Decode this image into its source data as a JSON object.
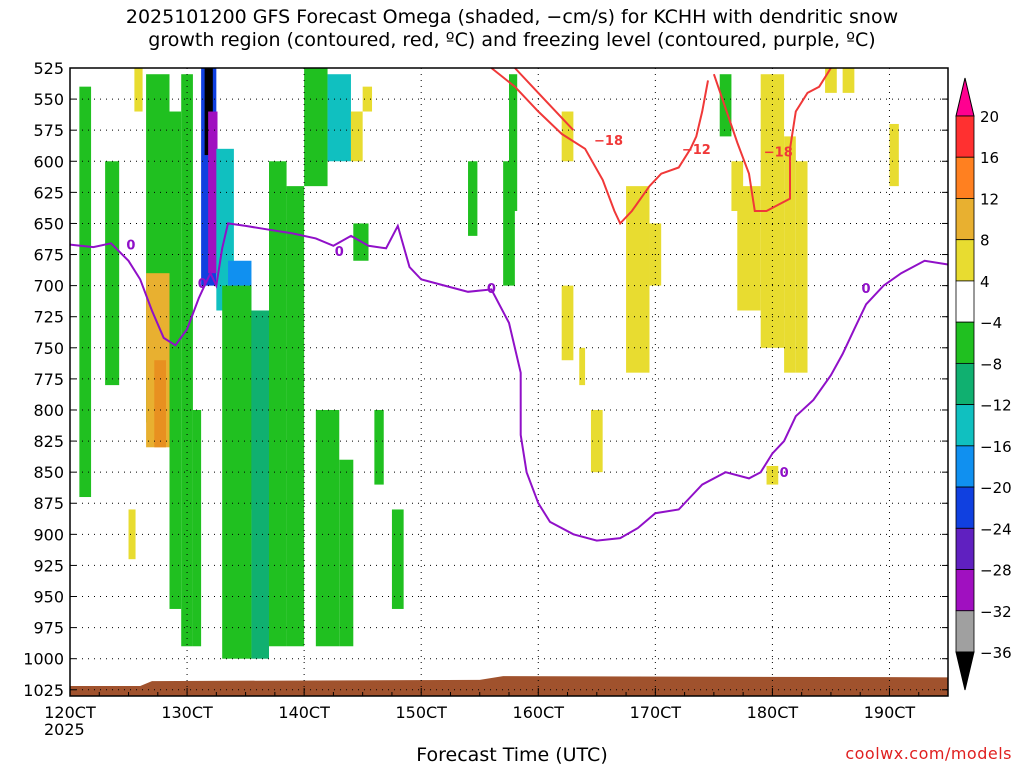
{
  "title_line1": "2025101200 GFS Forecast Omega (shaded, −cm/s) for KCHH with dendritic snow",
  "title_line2": "growth region (contoured, red, ºC) and freezing level (contoured, purple, ºC)",
  "credit": "coolwx.com/models",
  "chart_data": {
    "type": "heatmap",
    "title": "2025101200 GFS Forecast Omega (shaded, −cm/s) for KCHH with dendritic snow growth region (contoured, red, ºC) and freezing level (contoured, purple, ºC)",
    "xlabel": "Forecast Time (UTC)",
    "ylabel": "",
    "x_start_year": "2025",
    "x_ticks": [
      "120CT",
      "130CT",
      "140CT",
      "150CT",
      "160CT",
      "170CT",
      "180CT",
      "190CT"
    ],
    "x_range_days": [
      12,
      19.5
    ],
    "y_ticks": [
      525,
      550,
      575,
      600,
      625,
      650,
      675,
      700,
      725,
      750,
      775,
      800,
      825,
      850,
      875,
      900,
      925,
      950,
      975,
      1000,
      1025
    ],
    "y_range_hpa": [
      525,
      1030
    ],
    "y_inverted": true,
    "grid": true,
    "colorbar": {
      "labels": [
        "20",
        "16",
        "12",
        "8",
        "4",
        "−4",
        "−8",
        "−12",
        "−16",
        "−20",
        "−24",
        "−28",
        "−32",
        "−36"
      ],
      "colors": [
        "#ff0090",
        "#ff3030",
        "#ff8020",
        "#e8b030",
        "#e8dc30",
        "#ffffff",
        "#20c020",
        "#10b070",
        "#10c0c0",
        "#1090f0",
        "#1040e0",
        "#6020c0",
        "#a010c0",
        "#a0a0a0",
        "#000000"
      ]
    },
    "freezing_level_0C": {
      "color": "#9010c8",
      "label": "0",
      "points": [
        [
          12.0,
          667
        ],
        [
          12.2,
          669
        ],
        [
          12.35,
          666
        ],
        [
          12.5,
          680
        ],
        [
          12.6,
          695
        ],
        [
          12.7,
          720
        ],
        [
          12.8,
          742
        ],
        [
          12.9,
          748
        ],
        [
          13.0,
          735
        ],
        [
          13.1,
          710
        ],
        [
          13.15,
          700
        ],
        [
          13.2,
          690
        ],
        [
          13.25,
          700
        ],
        [
          13.3,
          670
        ],
        [
          13.35,
          650
        ],
        [
          13.5,
          652
        ],
        [
          13.7,
          655
        ],
        [
          13.9,
          658
        ],
        [
          14.1,
          662
        ],
        [
          14.25,
          668
        ],
        [
          14.4,
          660
        ],
        [
          14.55,
          668
        ],
        [
          14.7,
          670
        ],
        [
          14.8,
          652
        ],
        [
          14.9,
          685
        ],
        [
          15.0,
          695
        ],
        [
          15.2,
          700
        ],
        [
          15.4,
          705
        ],
        [
          15.6,
          703
        ],
        [
          15.75,
          730
        ],
        [
          15.85,
          770
        ],
        [
          15.85,
          820
        ],
        [
          15.9,
          850
        ],
        [
          16.0,
          875
        ],
        [
          16.1,
          890
        ],
        [
          16.3,
          900
        ],
        [
          16.5,
          905
        ],
        [
          16.7,
          903
        ],
        [
          16.85,
          895
        ],
        [
          17.0,
          883
        ],
        [
          17.2,
          880
        ],
        [
          17.3,
          870
        ],
        [
          17.4,
          860
        ],
        [
          17.6,
          850
        ],
        [
          17.8,
          855
        ],
        [
          17.9,
          850
        ],
        [
          18.0,
          835
        ],
        [
          18.1,
          825
        ],
        [
          18.2,
          805
        ],
        [
          18.35,
          792
        ],
        [
          18.5,
          772
        ],
        [
          18.6,
          755
        ],
        [
          18.7,
          735
        ],
        [
          18.8,
          715
        ],
        [
          18.95,
          700
        ],
        [
          19.1,
          690
        ],
        [
          19.3,
          680
        ],
        [
          19.5,
          683
        ]
      ]
    },
    "dgz_red_contours": [
      {
        "label": "−18",
        "color": "#f03838",
        "points": [
          [
            15.6,
            525
          ],
          [
            15.8,
            540
          ],
          [
            16.0,
            560
          ],
          [
            16.2,
            578
          ],
          [
            16.4,
            590
          ],
          [
            16.55,
            615
          ],
          [
            16.65,
            640
          ],
          [
            16.7,
            650
          ],
          [
            16.8,
            640
          ],
          [
            16.95,
            620
          ],
          [
            17.05,
            610
          ],
          [
            17.2,
            605
          ],
          [
            17.3,
            590
          ],
          [
            17.35,
            580
          ],
          [
            17.4,
            560
          ],
          [
            17.45,
            535
          ]
        ]
      },
      {
        "label": "−12",
        "color": "#f03838",
        "points": [
          [
            17.5,
            530
          ],
          [
            17.7,
            585
          ],
          [
            17.8,
            610
          ],
          [
            17.85,
            640
          ],
          [
            17.95,
            640
          ],
          [
            18.05,
            635
          ],
          [
            18.15,
            630
          ],
          [
            18.15,
            590
          ],
          [
            18.2,
            560
          ],
          [
            18.3,
            545
          ],
          [
            18.4,
            540
          ],
          [
            18.5,
            525
          ]
        ]
      },
      {
        "label": "−18",
        "color": "#f03838",
        "points": [
          [
            15.8,
            525
          ],
          [
            16.0,
            545
          ],
          [
            16.3,
            575
          ]
        ]
      }
    ]
  }
}
